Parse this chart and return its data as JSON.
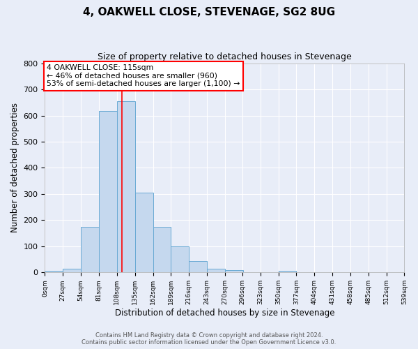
{
  "title": "4, OAKWELL CLOSE, STEVENAGE, SG2 8UG",
  "subtitle": "Size of property relative to detached houses in Stevenage",
  "xlabel": "Distribution of detached houses by size in Stevenage",
  "ylabel": "Number of detached properties",
  "bin_edges": [
    0,
    27,
    54,
    81,
    108,
    135,
    162,
    189,
    216,
    243,
    270,
    296,
    323,
    350,
    377,
    404,
    431,
    458,
    485,
    512,
    539
  ],
  "bar_heights": [
    5,
    13,
    175,
    618,
    655,
    305,
    175,
    100,
    43,
    14,
    8,
    2,
    0,
    6,
    0,
    0,
    0,
    0,
    0,
    0
  ],
  "bar_color": "#c5d8ee",
  "bar_edge_color": "#6aaad4",
  "property_line_x": 115,
  "property_line_color": "red",
  "annotation_text": "4 OAKWELL CLOSE: 115sqm\n← 46% of detached houses are smaller (960)\n53% of semi-detached houses are larger (1,100) →",
  "annotation_box_color": "white",
  "annotation_box_edge_color": "red",
  "ylim": [
    0,
    800
  ],
  "yticks": [
    0,
    100,
    200,
    300,
    400,
    500,
    600,
    700,
    800
  ],
  "footer_text": "Contains HM Land Registry data © Crown copyright and database right 2024.\nContains public sector information licensed under the Open Government Licence v3.0.",
  "background_color": "#e8edf8",
  "grid_color": "white",
  "figsize": [
    6.0,
    5.0
  ],
  "dpi": 100
}
